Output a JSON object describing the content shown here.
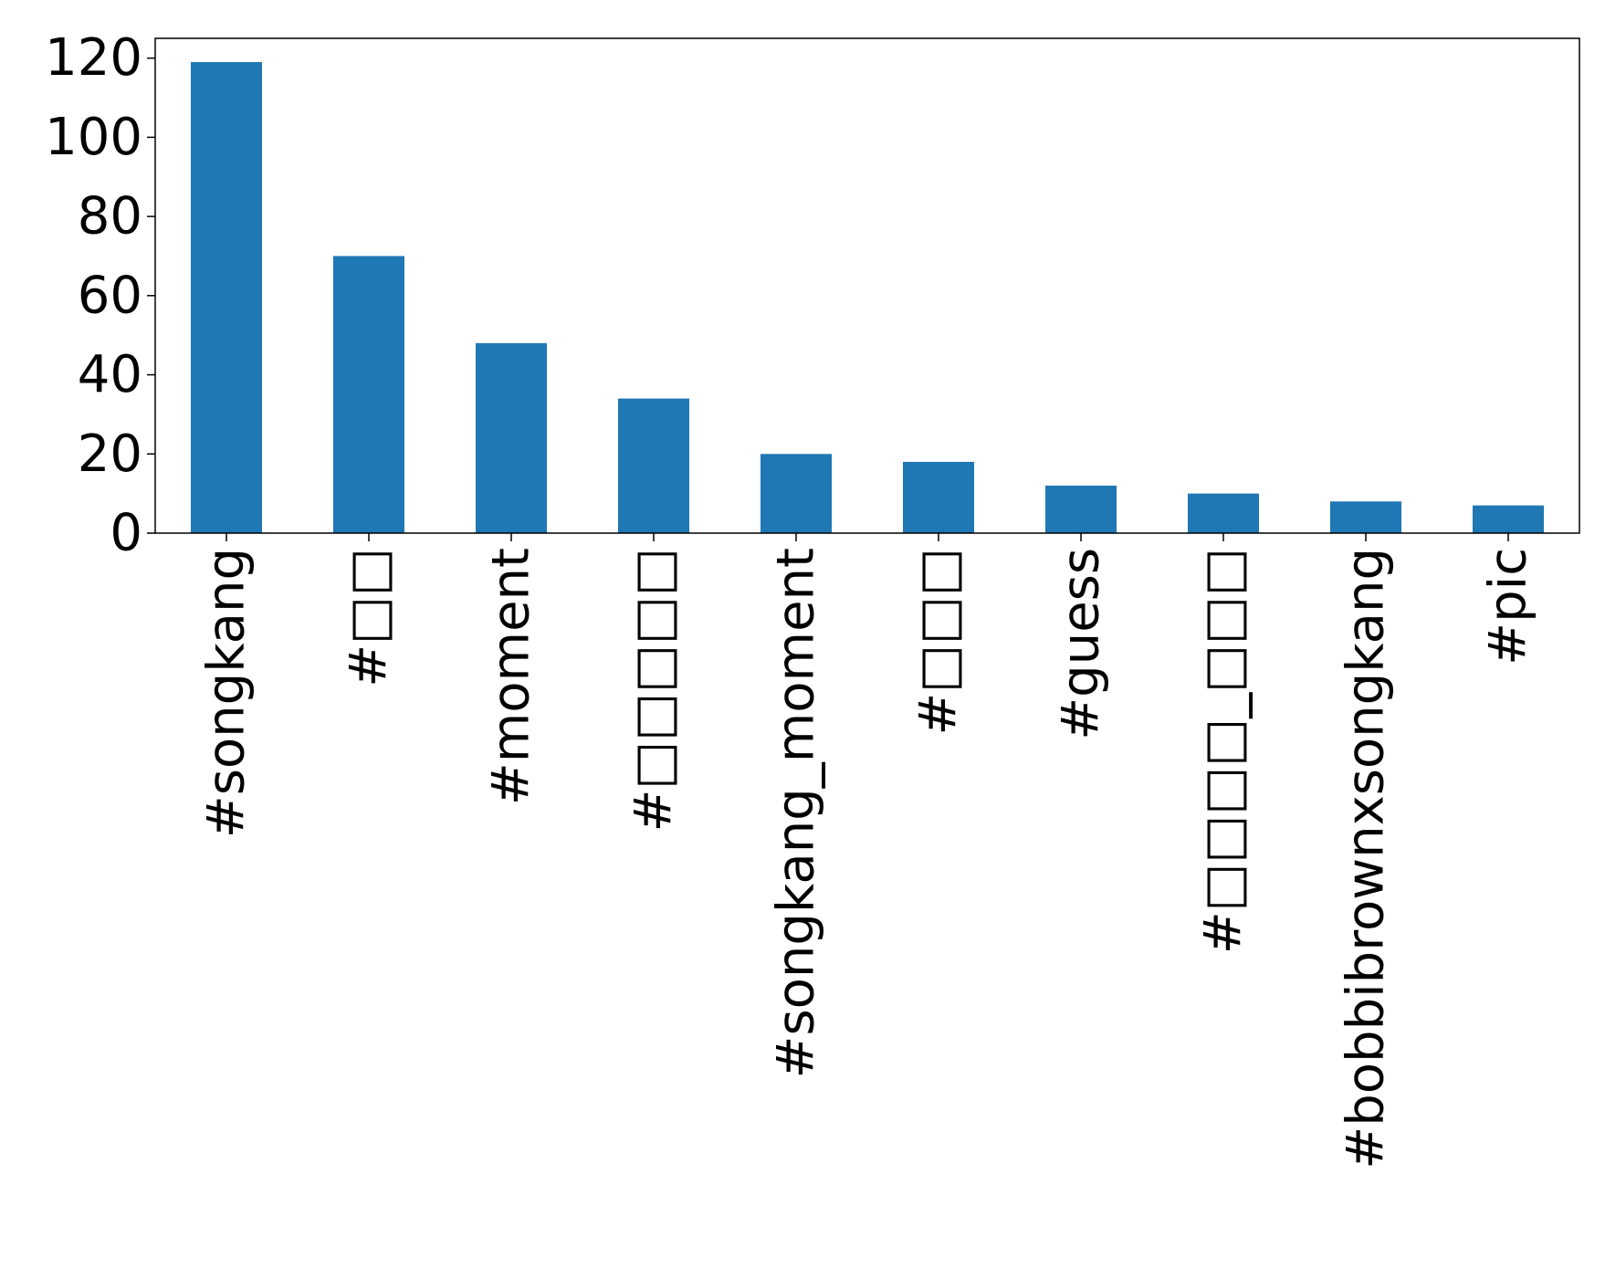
{
  "chart_data": {
    "type": "bar",
    "categories": [
      "#songkang",
      "#□□",
      "#moment",
      "#□□□□□",
      "#songkang_moment",
      "#□□□",
      "#guess",
      "#□□□□_□□□",
      "#bobbibrownxsongkang",
      "#pic"
    ],
    "values": [
      119,
      70,
      48,
      34,
      20,
      18,
      12,
      10,
      8,
      7
    ],
    "title": "",
    "xlabel": "",
    "ylabel": "",
    "ylim": [
      0,
      125
    ],
    "yticks": [
      0,
      20,
      40,
      60,
      80,
      100,
      120
    ],
    "grid": false,
    "legend": "none",
    "bar_color": "#1f77b4"
  }
}
